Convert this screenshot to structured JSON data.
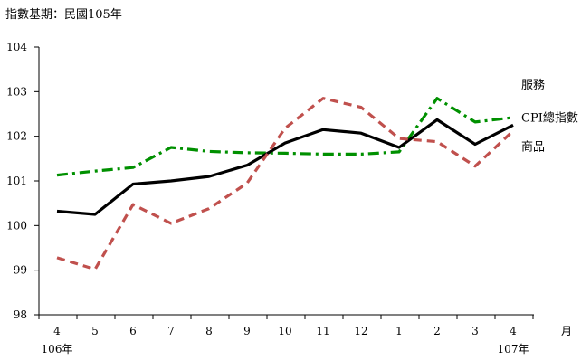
{
  "chart_data": {
    "type": "line",
    "subtitle": "指數基期：民國105年",
    "categories": [
      "4",
      "5",
      "6",
      "7",
      "8",
      "9",
      "10",
      "11",
      "12",
      "1",
      "2",
      "3",
      "4"
    ],
    "x_unit": "月",
    "year_labels": [
      {
        "category_index": 0,
        "text": "106年"
      },
      {
        "category_index": 12,
        "text": "107年"
      }
    ],
    "ylim": [
      98,
      104
    ],
    "yticks": [
      98,
      99,
      100,
      101,
      102,
      103,
      104
    ],
    "grid": false,
    "legend": "inline-right",
    "series": [
      {
        "name": "服務",
        "color": "#009000",
        "style": "dashdot",
        "values": [
          101.13,
          101.22,
          101.3,
          101.75,
          101.66,
          101.63,
          101.62,
          101.6,
          101.6,
          101.65,
          102.85,
          102.32,
          102.42
        ]
      },
      {
        "name": "CPI總指數",
        "color": "#000000",
        "style": "solid",
        "values": [
          100.32,
          100.25,
          100.93,
          101.0,
          101.1,
          101.35,
          101.85,
          102.15,
          102.07,
          101.75,
          102.37,
          101.82,
          102.25
        ]
      },
      {
        "name": "商品",
        "color": "#c0504d",
        "style": "dashed",
        "values": [
          99.28,
          99.02,
          100.47,
          100.05,
          100.38,
          100.95,
          102.18,
          102.85,
          102.65,
          101.95,
          101.88,
          101.33,
          102.12
        ]
      }
    ]
  }
}
